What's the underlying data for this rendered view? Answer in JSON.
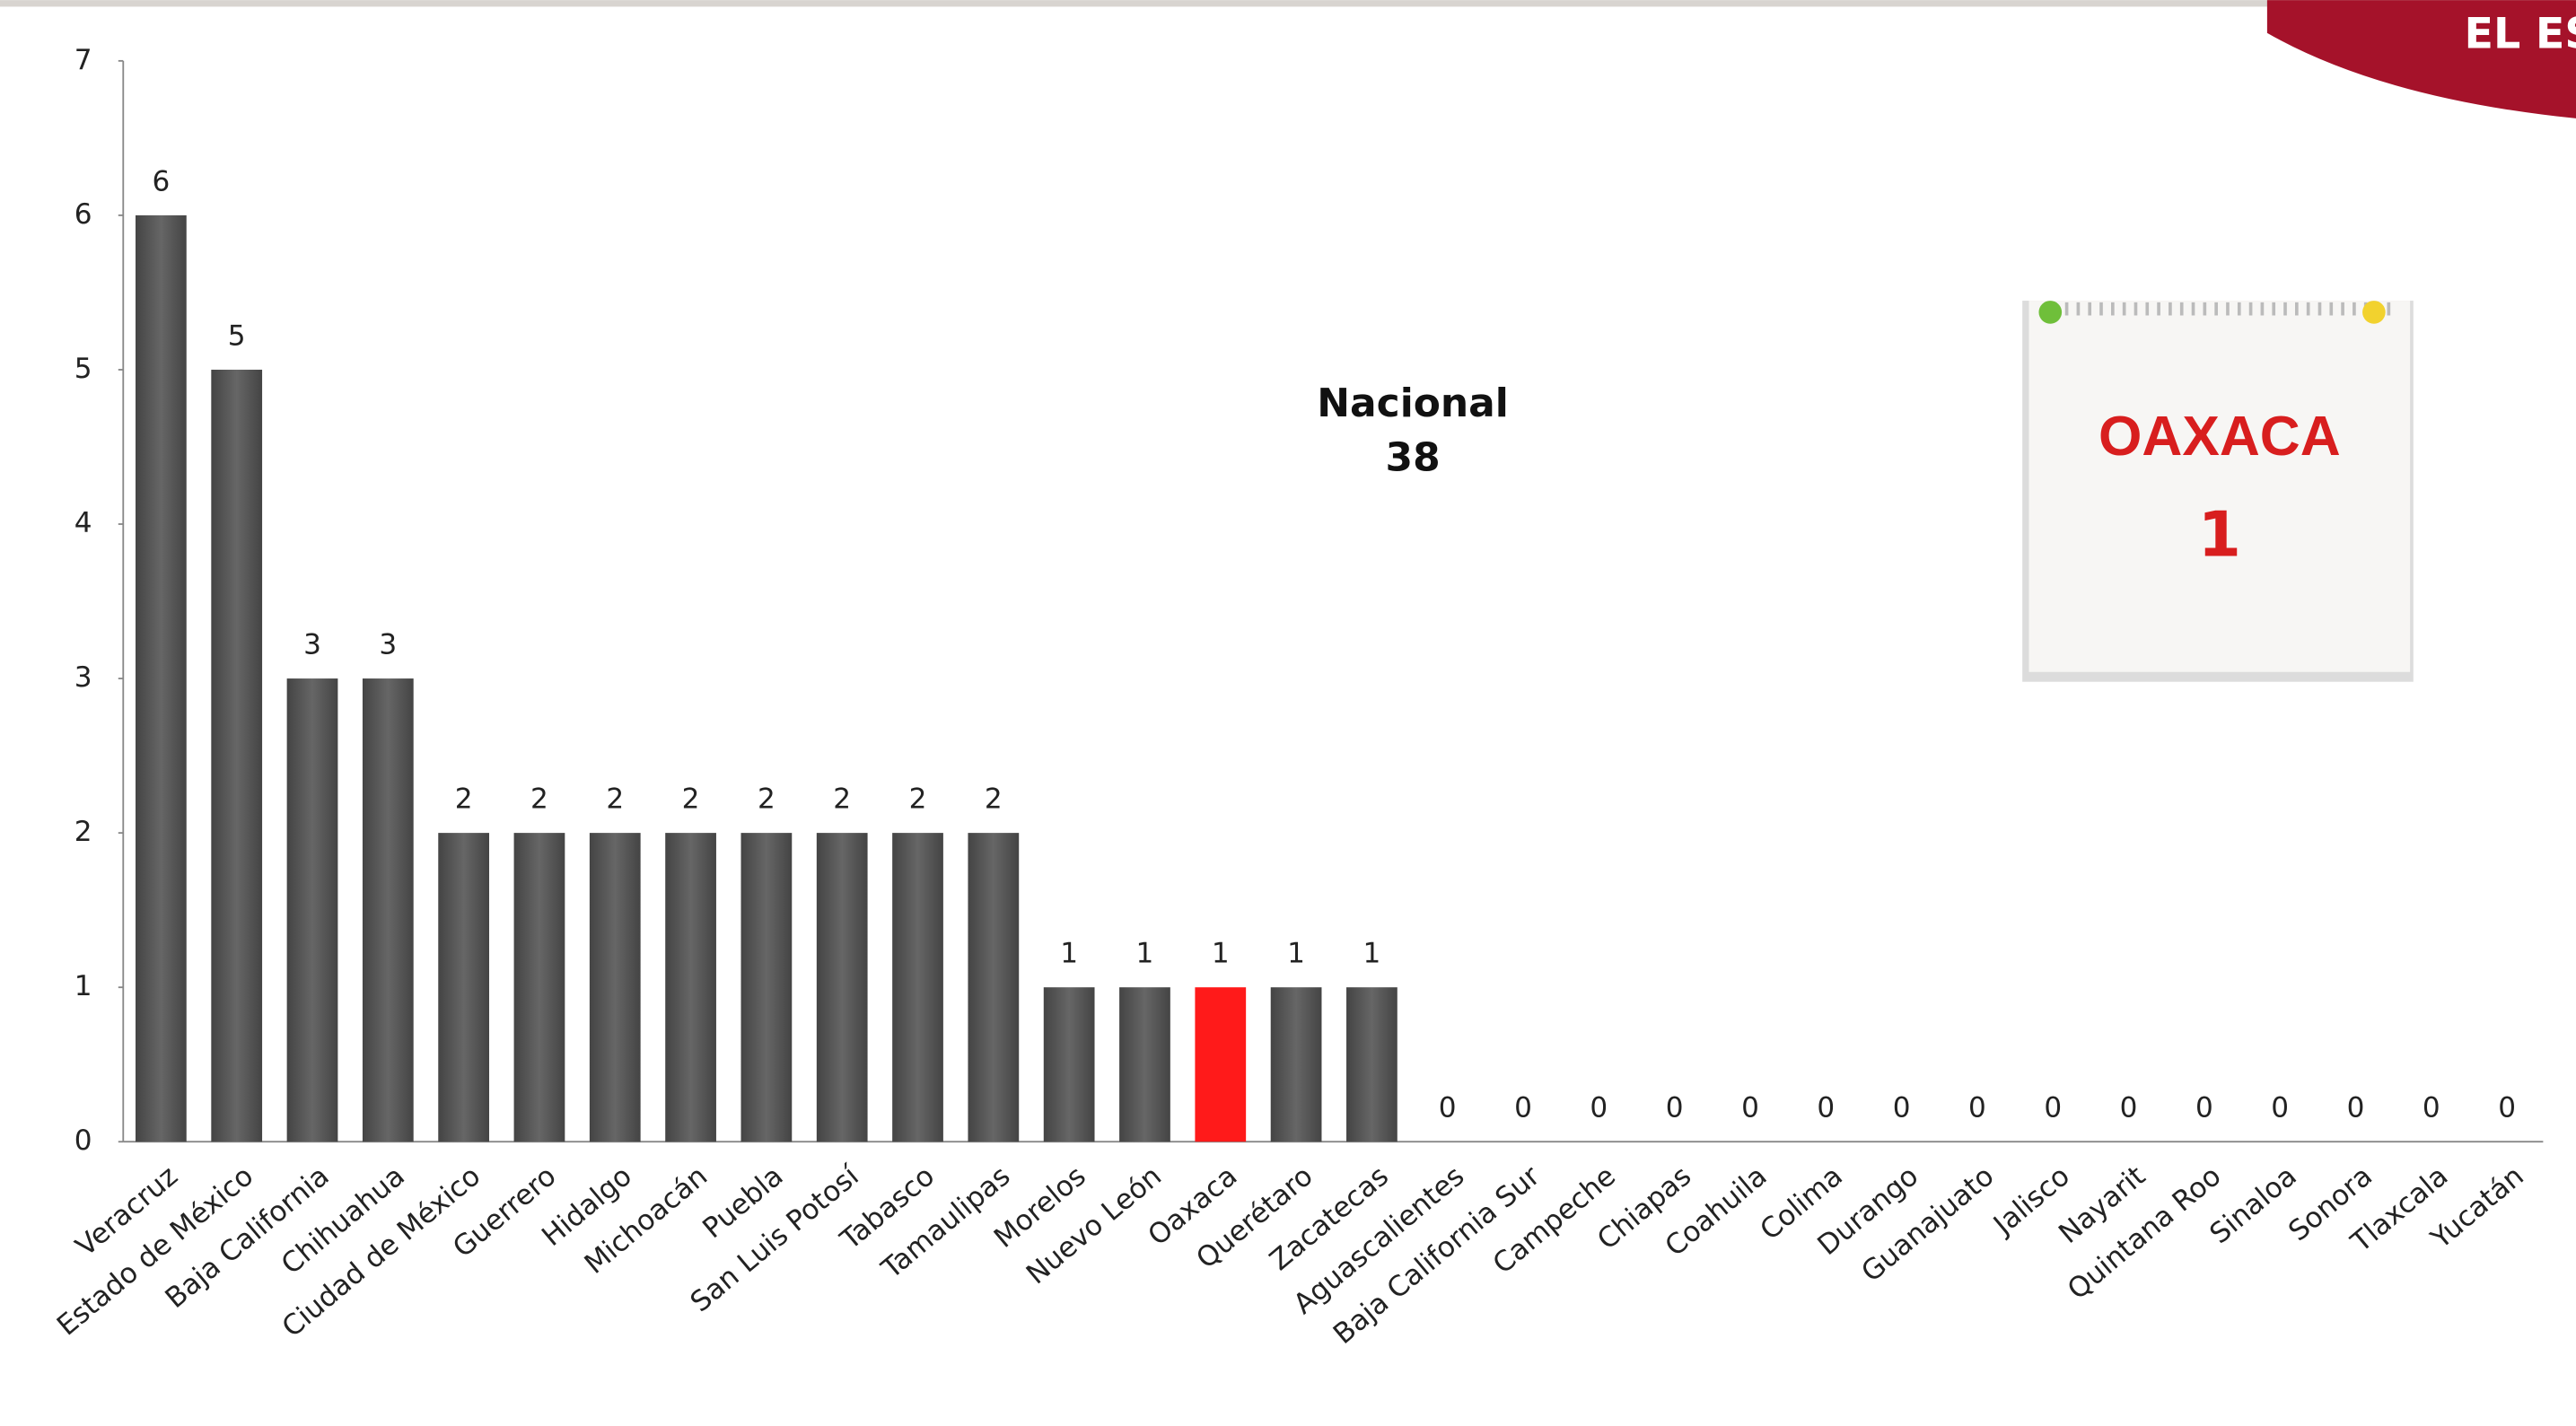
{
  "chart_data": {
    "type": "bar",
    "categories": [
      "Veracruz",
      "Estado de México",
      "Baja California",
      "Chihuahua",
      "Ciudad de México",
      "Guerrero",
      "Hidalgo",
      "Michoacán",
      "Puebla",
      "San Luis Potosí",
      "Tabasco",
      "Tamaulipas",
      "Morelos",
      "Nuevo León",
      "Oaxaca",
      "Querétaro",
      "Zacatecas",
      "Aguascalientes",
      "Baja California Sur",
      "Campeche",
      "Chiapas",
      "Coahuila",
      "Colima",
      "Durango",
      "Guanajuato",
      "Jalisco",
      "Nayarit",
      "Quintana Roo",
      "Sinaloa",
      "Sonora",
      "Tlaxcala",
      "Yucatán"
    ],
    "values": [
      6,
      5,
      3,
      3,
      2,
      2,
      2,
      2,
      2,
      2,
      2,
      2,
      1,
      1,
      1,
      1,
      1,
      0,
      0,
      0,
      0,
      0,
      0,
      0,
      0,
      0,
      0,
      0,
      0,
      0,
      0,
      0
    ],
    "colors": [
      "#555555",
      "#555555",
      "#555555",
      "#555555",
      "#555555",
      "#555555",
      "#555555",
      "#555555",
      "#555555",
      "#555555",
      "#555555",
      "#555555",
      "#555555",
      "#555555",
      "#ff1a1a",
      "#555555",
      "#555555",
      "#555555",
      "#555555",
      "#555555",
      "#555555",
      "#555555",
      "#555555",
      "#555555",
      "#555555",
      "#555555",
      "#555555",
      "#555555",
      "#555555",
      "#555555",
      "#555555",
      "#555555"
    ],
    "ylim": [
      0,
      7
    ],
    "yticks": [
      0,
      1,
      2,
      3,
      4,
      5,
      6,
      7
    ],
    "grid": false,
    "annotation": {
      "label": "Nacional",
      "value": 38
    },
    "card": {
      "title": "OAXACA",
      "value": 1
    },
    "logo_text": "EL ES"
  }
}
